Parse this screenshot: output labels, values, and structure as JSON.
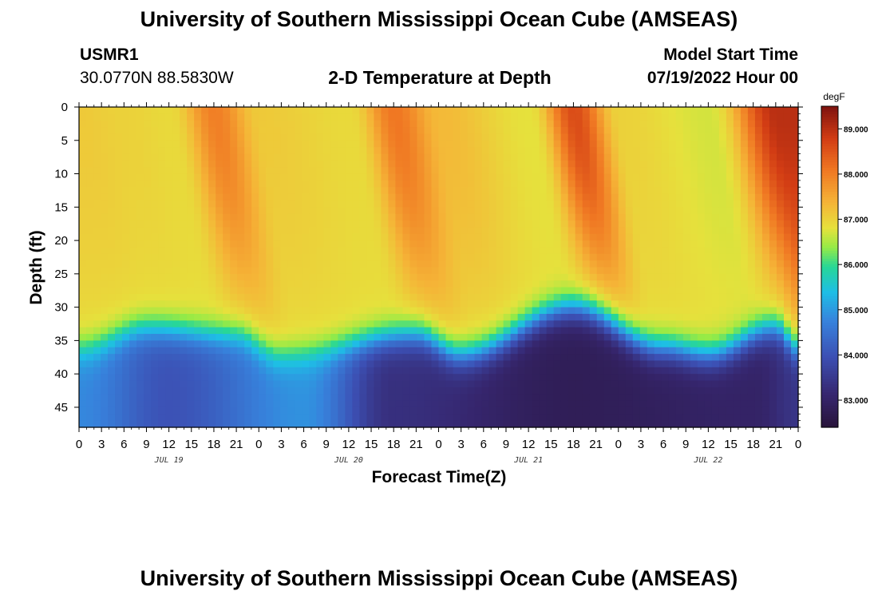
{
  "page": {
    "title_top": "University of Southern Mississippi Ocean Cube (AMSEAS)",
    "title_bottom": "University of Southern Mississippi Ocean Cube (AMSEAS)",
    "station_id": "USMR1",
    "station_coords": "30.0770N  88.5830W",
    "chart_subtitle": "2-D Temperature at Depth",
    "model_start_label": "Model Start Time",
    "model_start_value": "07/19/2022 Hour 00"
  },
  "chart_data": {
    "type": "heatmap",
    "title": "2-D Temperature at Depth",
    "xlabel": "Forecast Time(Z)",
    "ylabel": "Depth (ft)",
    "x_hours_range": [
      0,
      96
    ],
    "y_depth_range_ft": [
      0,
      48
    ],
    "y_ticks": [
      "0",
      "5",
      "10",
      "15",
      "20",
      "25",
      "30",
      "35",
      "40",
      "45"
    ],
    "x_tick_labels": [
      "0",
      "3",
      "6",
      "9",
      "12",
      "15",
      "18",
      "21",
      "0",
      "3",
      "6",
      "9",
      "12",
      "15",
      "18",
      "21",
      "0",
      "3",
      "6",
      "9",
      "12",
      "15",
      "18",
      "21",
      "0",
      "3",
      "6",
      "9",
      "12",
      "15",
      "18",
      "21",
      "0"
    ],
    "date_labels": [
      "JUL 19",
      "JUL 20",
      "JUL 21",
      "JUL 22"
    ],
    "colorbar": {
      "unit": "degF",
      "range": [
        82.4,
        89.5
      ],
      "ticks": [
        "83.000",
        "84.000",
        "85.000",
        "86.000",
        "87.000",
        "88.000",
        "89.000"
      ]
    },
    "surface_temp_degF": [
      {
        "hour": 0,
        "value": 87.1
      },
      {
        "hour": 6,
        "value": 87.0
      },
      {
        "hour": 12,
        "value": 86.9
      },
      {
        "hour": 18,
        "value": 88.0
      },
      {
        "hour": 24,
        "value": 87.1
      },
      {
        "hour": 36,
        "value": 86.9
      },
      {
        "hour": 42,
        "value": 88.1
      },
      {
        "hour": 48,
        "value": 87.3
      },
      {
        "hour": 60,
        "value": 86.8
      },
      {
        "hour": 66,
        "value": 88.6
      },
      {
        "hour": 72,
        "value": 87.0
      },
      {
        "hour": 84,
        "value": 86.7
      },
      {
        "hour": 93,
        "value": 89.0
      }
    ],
    "thermocline_depth_ft": [
      {
        "hour": 0,
        "value": 34
      },
      {
        "hour": 9,
        "value": 31
      },
      {
        "hour": 21,
        "value": 32
      },
      {
        "hour": 27,
        "value": 35
      },
      {
        "hour": 45,
        "value": 32
      },
      {
        "hour": 51,
        "value": 35
      },
      {
        "hour": 66,
        "value": 28
      },
      {
        "hour": 78,
        "value": 34
      },
      {
        "hour": 84,
        "value": 35
      },
      {
        "hour": 93,
        "value": 31
      },
      {
        "hour": 96,
        "value": 34
      }
    ],
    "bottom_temp_degF": [
      {
        "hour": 0,
        "value": 84.8
      },
      {
        "hour": 12,
        "value": 84.0
      },
      {
        "hour": 30,
        "value": 84.9
      },
      {
        "hour": 42,
        "value": 83.3
      },
      {
        "hour": 66,
        "value": 82.8
      },
      {
        "hour": 90,
        "value": 83.0
      },
      {
        "hour": 96,
        "value": 83.4
      }
    ]
  }
}
